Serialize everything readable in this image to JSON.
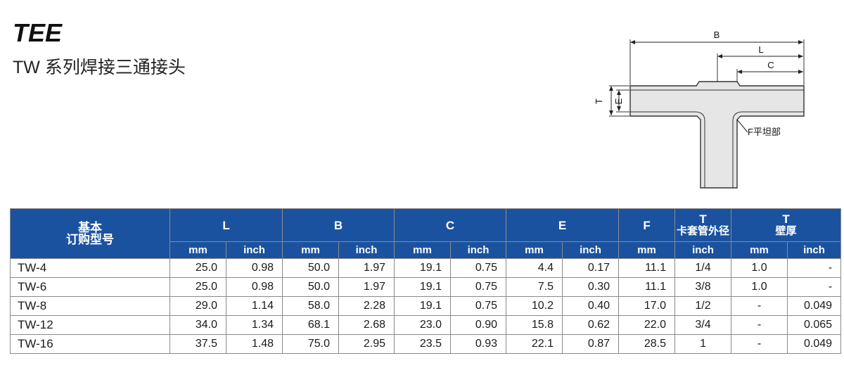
{
  "header": {
    "title": "TEE",
    "subtitle": "TW 系列焊接三通接头"
  },
  "diagram": {
    "labels": {
      "B": "B",
      "L": "L",
      "C": "C",
      "T": "T",
      "E": "E",
      "F": "F平坦部"
    }
  },
  "table": {
    "header": {
      "model": [
        "基本",
        "订购型号"
      ],
      "L": "L",
      "B": "B",
      "C": "C",
      "E": "E",
      "F": "F",
      "T1": "T",
      "T1_sub": "卡套管外径",
      "T2": "T",
      "T2_sub": "壁厚"
    },
    "units": [
      "mm",
      "inch",
      "mm",
      "inch",
      "mm",
      "inch",
      "mm",
      "inch",
      "mm",
      "inch",
      "mm",
      "inch"
    ],
    "rows": [
      [
        "TW-4",
        "25.0",
        "0.98",
        "50.0",
        "1.97",
        "19.1",
        "0.75",
        "4.4",
        "0.17",
        "11.1",
        "1/4",
        "1.0",
        "-"
      ],
      [
        "TW-6",
        "25.0",
        "0.98",
        "50.0",
        "1.97",
        "19.1",
        "0.75",
        "7.5",
        "0.30",
        "11.1",
        "3/8",
        "1.0",
        "-"
      ],
      [
        "TW-8",
        "29.0",
        "1.14",
        "58.0",
        "2.28",
        "19.1",
        "0.75",
        "10.2",
        "0.40",
        "17.0",
        "1/2",
        "-",
        "0.049"
      ],
      [
        "TW-12",
        "34.0",
        "1.34",
        "68.1",
        "2.68",
        "23.0",
        "0.90",
        "15.8",
        "0.62",
        "22.0",
        "3/4",
        "-",
        "0.065"
      ],
      [
        "TW-16",
        "37.5",
        "1.48",
        "75.0",
        "2.95",
        "23.5",
        "0.93",
        "22.1",
        "0.87",
        "28.5",
        "1",
        "-",
        "0.049"
      ]
    ]
  }
}
